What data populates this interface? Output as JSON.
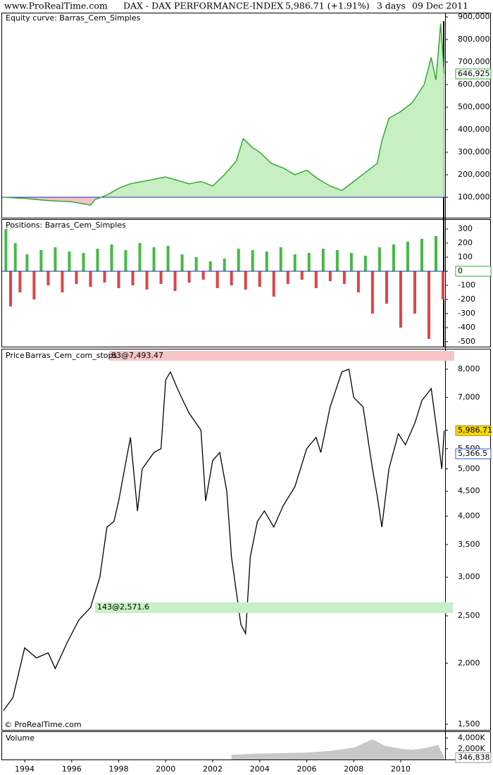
{
  "header": {
    "site": "www.ProRealTime.com",
    "instrument": "DAX - DAX PERFORMANCE-INDEX",
    "quote": "5,986.71 (+1.91%)",
    "period": "3 days",
    "date": "09 Dec 2011"
  },
  "footer": {
    "copyright": "© ProRealTime.com"
  },
  "chart_data": [
    {
      "type": "area",
      "title": "Equity curve: Barras_Cem_Simples",
      "color": "#33aa33",
      "fill": "#c8efc4",
      "below_fill": "#f4c4c8",
      "baseline": 100000,
      "baseline_color": "#2222bb",
      "x": [
        1993.1,
        1994.0,
        1995.0,
        1996.0,
        1996.8,
        1997.0,
        1997.5,
        1998.0,
        1998.5,
        1999.0,
        1999.5,
        2000.0,
        2000.5,
        2001.0,
        2001.5,
        2002.0,
        2002.5,
        2003.0,
        2003.3,
        2003.7,
        2004.0,
        2004.5,
        2005.0,
        2005.5,
        2006.0,
        2006.5,
        2007.0,
        2007.5,
        2008.0,
        2008.5,
        2009.0,
        2009.2,
        2009.5,
        2010.0,
        2010.5,
        2011.0,
        2011.3,
        2011.5,
        2011.7,
        2011.85
      ],
      "values": [
        100000,
        95000,
        85000,
        80000,
        65000,
        90000,
        110000,
        140000,
        160000,
        170000,
        180000,
        190000,
        175000,
        160000,
        170000,
        150000,
        200000,
        260000,
        360000,
        320000,
        300000,
        250000,
        230000,
        200000,
        220000,
        180000,
        150000,
        130000,
        170000,
        210000,
        250000,
        350000,
        450000,
        480000,
        520000,
        600000,
        720000,
        620000,
        870000,
        646925
      ],
      "last_label": {
        "value": 646925,
        "label": "646,925"
      },
      "xlim": [
        1993.04,
        2011.89
      ],
      "ylim": [
        12500,
        918750
      ],
      "yticks": [
        {
          "value": 100000,
          "label": "100,000"
        },
        {
          "value": 200000,
          "label": "200,000"
        },
        {
          "value": 300000,
          "label": "300,000"
        },
        {
          "value": 400000,
          "label": "400,000"
        },
        {
          "value": 500000,
          "label": "500,000"
        },
        {
          "value": 600000,
          "label": "600,000"
        },
        {
          "value": 700000,
          "label": "700,000"
        },
        {
          "value": 800000,
          "label": "800,000"
        },
        {
          "value": 900000,
          "label": "900,000"
        }
      ]
    },
    {
      "type": "bar",
      "title": "Positions: Barras_Cem_Simples",
      "positive_color": "#44bb44",
      "negative_color": "#dd4444",
      "baseline_color": "#2222bb",
      "x": [
        1993.2,
        1993.4,
        1993.6,
        1993.8,
        1994.1,
        1994.4,
        1994.7,
        1995.0,
        1995.3,
        1995.6,
        1995.9,
        1996.2,
        1996.5,
        1996.8,
        1997.1,
        1997.4,
        1997.7,
        1998.0,
        1998.3,
        1998.6,
        1998.9,
        1999.2,
        1999.5,
        1999.8,
        2000.1,
        2000.4,
        2000.7,
        2001.0,
        2001.3,
        2001.6,
        2001.9,
        2002.2,
        2002.5,
        2002.8,
        2003.1,
        2003.4,
        2003.7,
        2004.0,
        2004.3,
        2004.6,
        2004.9,
        2005.2,
        2005.5,
        2005.8,
        2006.1,
        2006.4,
        2006.7,
        2007.0,
        2007.3,
        2007.6,
        2007.9,
        2008.2,
        2008.5,
        2008.8,
        2009.1,
        2009.4,
        2009.7,
        2010.0,
        2010.3,
        2010.6,
        2010.9,
        2011.2,
        2011.5,
        2011.8
      ],
      "values": [
        300,
        -250,
        200,
        -150,
        120,
        -200,
        150,
        -100,
        170,
        -150,
        140,
        -90,
        130,
        -110,
        160,
        -80,
        190,
        -120,
        150,
        -100,
        200,
        -130,
        170,
        -90,
        180,
        -140,
        120,
        -80,
        100,
        -60,
        70,
        -120,
        90,
        -100,
        160,
        -130,
        150,
        -110,
        140,
        -180,
        170,
        -90,
        120,
        -60,
        130,
        -120,
        160,
        -70,
        150,
        -90,
        130,
        -150,
        110,
        -300,
        170,
        -230,
        190,
        -400,
        210,
        -300,
        230,
        -480,
        250,
        -200
      ],
      "last_label": {
        "value": 0,
        "label": "0"
      },
      "xlim": [
        1993.04,
        2011.89
      ],
      "ylim": [
        -535,
        365
      ],
      "yticks": [
        300,
        200,
        100,
        0,
        -100,
        -200,
        -300,
        -400,
        -500
      ]
    },
    {
      "type": "line",
      "title": "Price",
      "indicator": "Barras_Cem_com_stops",
      "color": "#000000",
      "log_scale": true,
      "x": [
        1993.1,
        1993.5,
        1994.0,
        1994.5,
        1995.0,
        1995.3,
        1995.8,
        1996.3,
        1996.8,
        1997.2,
        1997.5,
        1997.8,
        1998.0,
        1998.5,
        1998.8,
        1999.0,
        1999.5,
        1999.8,
        2000.0,
        2000.2,
        2000.5,
        2000.8,
        2001.0,
        2001.5,
        2001.7,
        2002.0,
        2002.3,
        2002.6,
        2002.8,
        2003.2,
        2003.4,
        2003.6,
        2003.9,
        2004.2,
        2004.6,
        2005.0,
        2005.5,
        2006.0,
        2006.4,
        2006.6,
        2007.0,
        2007.5,
        2007.8,
        2008.0,
        2008.4,
        2008.8,
        2009.0,
        2009.2,
        2009.5,
        2009.9,
        2010.2,
        2010.6,
        2010.9,
        2011.3,
        2011.6,
        2011.75,
        2011.85
      ],
      "values": [
        1600,
        1700,
        2150,
        2050,
        2100,
        1950,
        2200,
        2450,
        2600,
        3000,
        3800,
        3900,
        4300,
        5800,
        4100,
        5000,
        5400,
        5500,
        7600,
        7900,
        7300,
        6800,
        6500,
        6000,
        4300,
        5200,
        5400,
        4500,
        3300,
        2400,
        2300,
        3300,
        3900,
        4100,
        3800,
        4200,
        4600,
        5500,
        5800,
        5400,
        6700,
        7900,
        8000,
        7000,
        6700,
        5000,
        4400,
        3800,
        5000,
        5900,
        5600,
        6200,
        6900,
        7300,
        5700,
        5000,
        5986.71
      ],
      "last_label": {
        "value": 5986.71,
        "label": "5,986.71"
      },
      "level_label": {
        "value": 5366.5,
        "label": "5,366.5"
      },
      "annotations": [
        "83@7,493.47",
        "143@2,571.6"
      ],
      "xlim": [
        1993.04,
        2011.89
      ],
      "ylim": [
        1465,
        8750
      ],
      "yticks": [
        {
          "value": 1500,
          "label": "1,500"
        },
        {
          "value": 2000,
          "label": "2,000"
        },
        {
          "value": 2500,
          "label": "2,500"
        },
        {
          "value": 3000,
          "label": "3,000"
        },
        {
          "value": 3500,
          "label": "3,500"
        },
        {
          "value": 4000,
          "label": "4,000"
        },
        {
          "value": 4500,
          "label": "4,500"
        },
        {
          "value": 5000,
          "label": "5,000"
        },
        {
          "value": 5500,
          "label": "5,500"
        },
        {
          "value": 6000,
          "label": "6,000"
        },
        {
          "value": 7000,
          "label": "7,000"
        },
        {
          "value": 8000,
          "label": "8,000"
        }
      ]
    },
    {
      "type": "volume",
      "title": "Volume",
      "color": "#c8c8c8",
      "x": [
        2002.8,
        2004.0,
        2005.0,
        2006.0,
        2007.0,
        2007.5,
        2008.0,
        2008.8,
        2009.3,
        2010.0,
        2010.5,
        2011.0,
        2011.6,
        2011.85
      ],
      "values": [
        900000,
        1100000,
        1200000,
        1300000,
        1600000,
        1900000,
        2200000,
        3800000,
        2600000,
        2000000,
        1800000,
        2100000,
        2700000,
        346838
      ],
      "last_label": {
        "value": 346838,
        "label": "346,838"
      },
      "xlim": [
        1993.04,
        2011.89
      ],
      "ylim": [
        0,
        5000000
      ],
      "yticks": [
        {
          "value": 2000000,
          "label": "2,000K"
        },
        {
          "value": 4000000,
          "label": "4,000K"
        }
      ],
      "xticks": [
        1994,
        1996,
        1998,
        2000,
        2002,
        2004,
        2006,
        2008,
        2010
      ]
    }
  ]
}
